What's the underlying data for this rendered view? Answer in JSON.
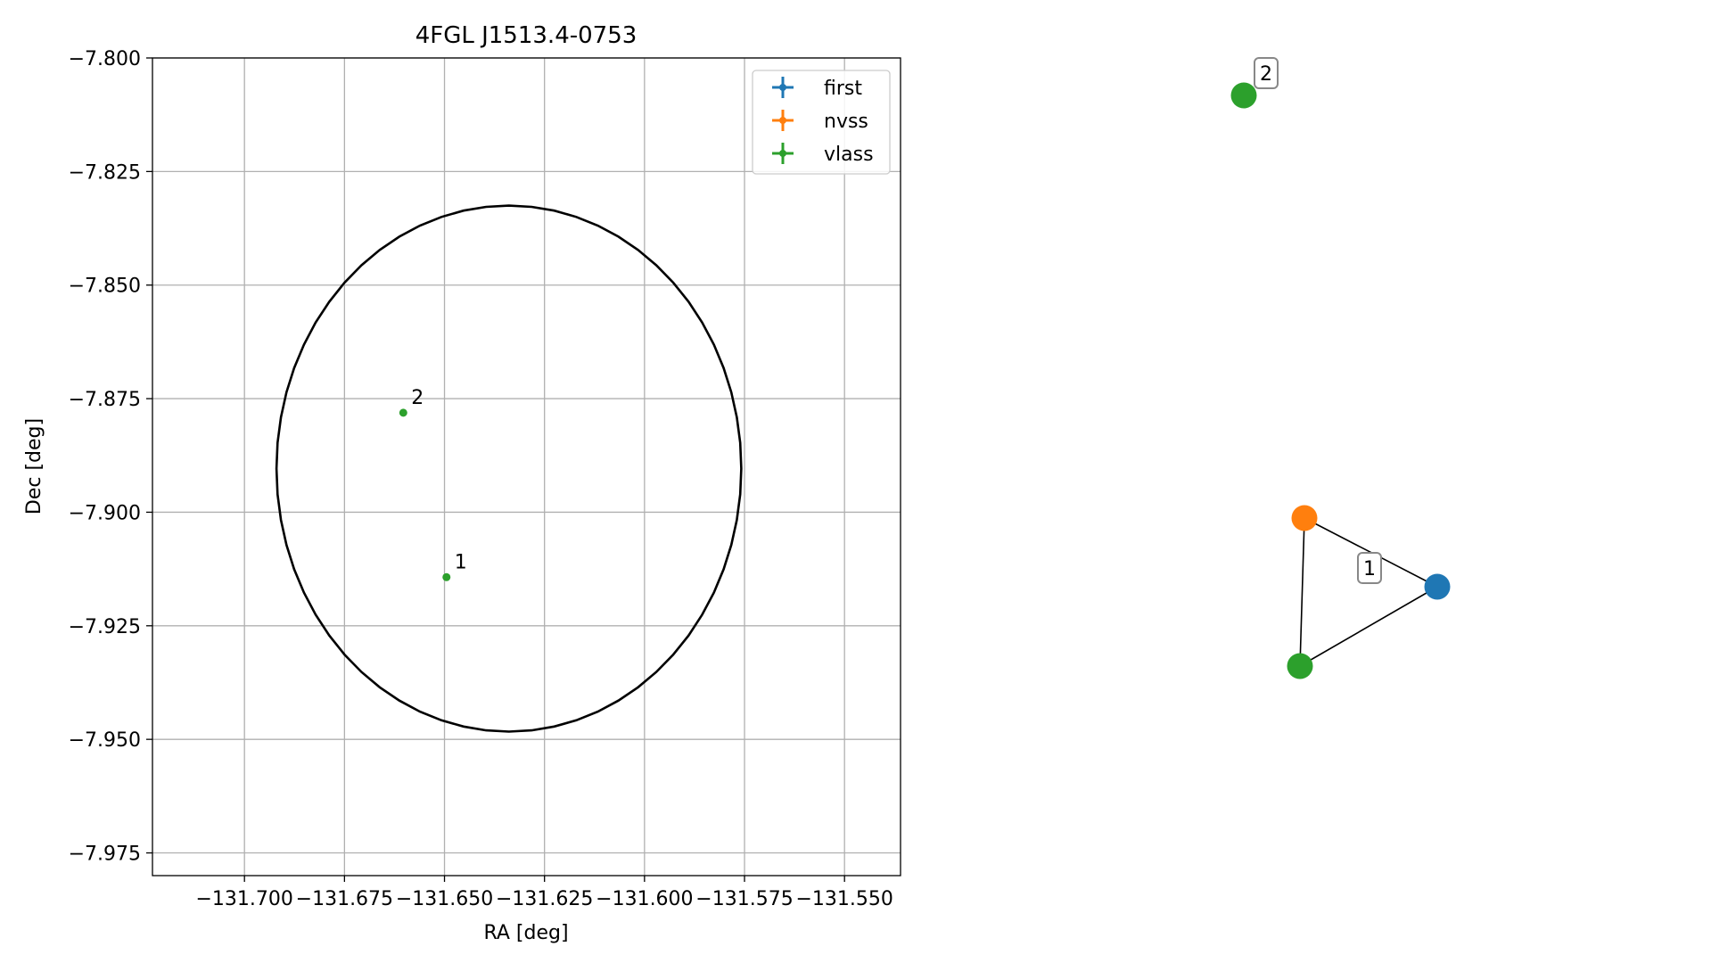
{
  "chart_data": [
    {
      "type": "scatter",
      "title": "4FGL J1513.4-0753",
      "xlabel": "RA [deg]",
      "ylabel": "Dec [deg]",
      "xlim": [
        -131.723,
        -131.536
      ],
      "ylim": [
        -7.98,
        -7.8
      ],
      "xticks": [
        -131.7,
        -131.675,
        -131.65,
        -131.625,
        -131.6,
        -131.575,
        -131.55
      ],
      "xtick_labels": [
        "−131.700",
        "−131.675",
        "−131.650",
        "−131.625",
        "−131.600",
        "−131.575",
        "−131.550"
      ],
      "yticks": [
        -7.8,
        -7.825,
        -7.85,
        -7.875,
        -7.9,
        -7.925,
        -7.95,
        -7.975
      ],
      "ytick_labels": [
        "−7.800",
        "−7.825",
        "−7.850",
        "−7.875",
        "−7.900",
        "−7.925",
        "−7.950",
        "−7.975"
      ],
      "grid": true,
      "legend_position": "top-right",
      "legend": [
        {
          "name": "first",
          "color": "#1f77b4"
        },
        {
          "name": "nvss",
          "color": "#ff7f0e"
        },
        {
          "name": "vlass",
          "color": "#2ca02c"
        }
      ],
      "points": [
        {
          "label": "1",
          "ra": -131.6495,
          "dec": -7.9143,
          "color": "#2ca02c"
        },
        {
          "label": "2",
          "ra": -131.6603,
          "dec": -7.8781,
          "color": "#2ca02c"
        }
      ],
      "ellipse": {
        "center_ra": -131.6339,
        "center_dec": -7.8904,
        "semi_ra": 0.0581,
        "semi_dec": 0.0579,
        "color": "#000000"
      }
    },
    {
      "type": "network",
      "nodes": [
        {
          "id": "n1",
          "color": "#1f77b4"
        },
        {
          "id": "n2",
          "color": "#ff7f0e"
        },
        {
          "id": "n3",
          "color": "#2ca02c"
        },
        {
          "id": "n4",
          "color": "#2ca02c"
        }
      ],
      "edges": [
        [
          "n1",
          "n2"
        ],
        [
          "n2",
          "n3"
        ],
        [
          "n3",
          "n1"
        ]
      ],
      "group_labels": [
        {
          "text": "1"
        },
        {
          "text": "2"
        }
      ]
    }
  ]
}
